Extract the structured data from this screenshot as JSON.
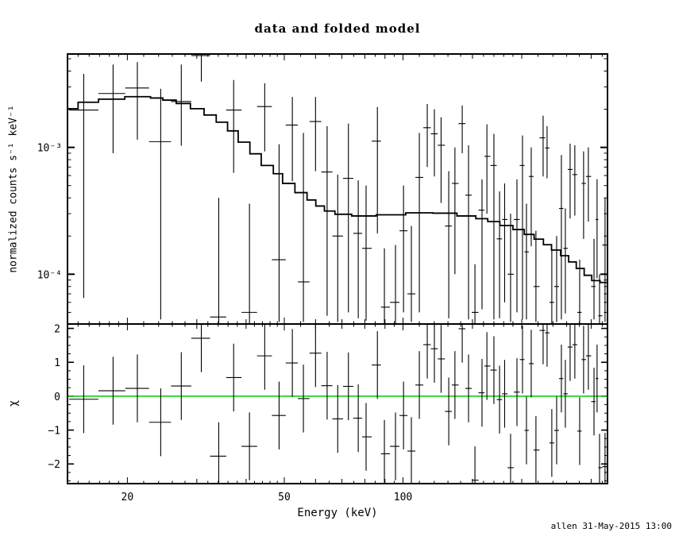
{
  "window": {
    "timestamp": "allen 31-May-2015 13:00"
  },
  "colors": {
    "foreground": "#000000",
    "background": "#ffffff",
    "zero_line": "#00cc00"
  },
  "axes": {
    "x": {
      "scale": "log",
      "min": 14.1,
      "max": 330,
      "unit": "keV",
      "major_ticks": [
        20,
        50,
        100
      ],
      "tick_labels": [
        "20",
        "50",
        "100"
      ],
      "mid_ticks": [
        30,
        40,
        60,
        70,
        80,
        90,
        150,
        200,
        300
      ],
      "minor_ticks": [
        15,
        16,
        17,
        18,
        19,
        22,
        24,
        26,
        28,
        32,
        34,
        36,
        38,
        42,
        44,
        46,
        48,
        55,
        65,
        75,
        85,
        95,
        110,
        120,
        130,
        140,
        160,
        170,
        180,
        190,
        220,
        240,
        260,
        280,
        320
      ]
    },
    "y_top": {
      "scale": "log",
      "min": 4.05e-05,
      "max": 0.00545,
      "major_ticks": [
        0.001,
        0.0001
      ],
      "tick_labels": [
        "10⁻³",
        "10⁻⁴"
      ],
      "minor_ticks": [
        0.005,
        0.004,
        0.003,
        0.002,
        0.0009,
        0.0008,
        0.0007,
        0.0006,
        0.0005,
        0.0004,
        0.0003,
        0.0002,
        9e-05,
        8e-05,
        7e-05,
        6e-05,
        5e-05
      ]
    },
    "y_bottom": {
      "scale": "linear",
      "min": -2.58,
      "max": 2.13,
      "major_ticks": [
        -2,
        -1,
        0,
        1,
        2
      ],
      "tick_labels": [
        "−2",
        "−1",
        "0",
        "1",
        "2"
      ],
      "minor_step": 0.25
    }
  },
  "chart_data": [
    {
      "type": "scatter",
      "panel": "top",
      "title": "data and folded model",
      "xlabel": "Energy (keV)",
      "ylabel": "normalized counts s⁻¹ keV⁻¹",
      "xscale": "log",
      "yscale": "log",
      "xlim": [
        14.1,
        330
      ],
      "ylim": [
        4.05e-05,
        0.00545
      ],
      "grid": false,
      "legend": null,
      "series_note": "points = [energy_keV, rate, err_low, err_high]; horizontal bar spans the energy bin; model is the folded model histogram [e_low, e_high, rate]",
      "points": [
        [
          15.5,
          0.00197,
          6.5e-05,
          0.0038
        ],
        [
          18.4,
          0.00266,
          0.0009,
          0.0045
        ],
        [
          21.2,
          0.00294,
          0.00115,
          0.0047
        ],
        [
          24.3,
          0.00111,
          4.4e-05,
          0.0029
        ],
        [
          27.4,
          0.0023,
          0.00103,
          0.0045
        ],
        [
          30.8,
          0.0053,
          0.0033,
          0.0056
        ],
        [
          34.1,
          4.6e-05,
          4e-05,
          0.0004
        ],
        [
          37.2,
          0.00197,
          0.00063,
          0.0034
        ],
        [
          40.8,
          5e-05,
          4e-05,
          0.00036
        ],
        [
          44.6,
          0.0021,
          0.00093,
          0.0032
        ],
        [
          48.5,
          0.00013,
          4.2e-05,
          0.00106
        ],
        [
          52.4,
          0.0015,
          0.00054,
          0.0025
        ],
        [
          55.9,
          8.7e-05,
          4.2e-05,
          0.0013
        ],
        [
          60.0,
          0.0016,
          0.00065,
          0.0025
        ],
        [
          64.2,
          0.00064,
          4.7e-05,
          0.00147
        ],
        [
          68.3,
          0.0002,
          4.2e-05,
          0.00061
        ],
        [
          72.7,
          0.00057,
          5e-05,
          0.00154
        ],
        [
          77.0,
          0.00021,
          4.5e-05,
          0.00055
        ],
        [
          80.6,
          0.00016,
          4.3e-05,
          0.0005
        ],
        [
          86.1,
          0.00112,
          0.00021,
          0.00208
        ],
        [
          89.7,
          5.5e-05,
          4.1e-05,
          0.00016
        ],
        [
          95.7,
          6e-05,
          4.1e-05,
          0.00017
        ],
        [
          100.3,
          0.00022,
          5e-05,
          0.0005
        ],
        [
          105.0,
          7e-05,
          4.2e-05,
          0.00024
        ],
        [
          110.0,
          0.00058,
          5e-05,
          0.0013
        ],
        [
          115.2,
          0.00143,
          0.0007,
          0.0022
        ],
        [
          120.1,
          0.00128,
          0.00059,
          0.002
        ],
        [
          124.9,
          0.00104,
          0.000365,
          0.00173
        ],
        [
          130.6,
          0.00024,
          4.5e-05,
          0.00065
        ],
        [
          135.4,
          0.00052,
          0.0001,
          0.001
        ],
        [
          141.3,
          0.00154,
          0.0009,
          0.00214
        ],
        [
          146.6,
          0.00042,
          4.4e-05,
          0.00104
        ],
        [
          152.2,
          5e-05,
          4.1e-05,
          0.00012
        ],
        [
          158.6,
          0.00032,
          5.3e-05,
          0.00056
        ],
        [
          163.2,
          0.00085,
          0.0003,
          0.00152
        ],
        [
          170.0,
          0.00072,
          4.4e-05,
          0.00128
        ],
        [
          175.7,
          0.00019,
          4.5e-05,
          0.00045
        ],
        [
          181.0,
          0.00027,
          6e-05,
          0.00052
        ],
        [
          187.4,
          0.0001,
          4.2e-05,
          0.0003
        ],
        [
          194.5,
          0.00027,
          5e-05,
          0.00056
        ],
        [
          200.9,
          0.00072,
          4.4e-05,
          0.00124
        ],
        [
          205.6,
          0.00015,
          4.4e-05,
          0.00036
        ],
        [
          211.4,
          0.00059,
          0.000166,
          0.001
        ],
        [
          217.3,
          8e-05,
          4.2e-05,
          0.00022
        ],
        [
          226.6,
          0.00119,
          0.00059,
          0.00178
        ],
        [
          231.9,
          0.00099,
          0.00057,
          0.00147
        ],
        [
          238.4,
          6e-05,
          4.1e-05,
          0.00016
        ],
        [
          245.2,
          8e-05,
          4.2e-05,
          0.0002
        ],
        [
          252.1,
          0.00033,
          4.4e-05,
          0.00087
        ],
        [
          258.0,
          0.00016,
          4.9e-05,
          0.00033
        ],
        [
          265.3,
          0.00067,
          0.000275,
          0.00107
        ],
        [
          272.7,
          0.00061,
          0.00029,
          0.00104
        ],
        [
          280.5,
          5e-05,
          4.1e-05,
          0.00013
        ],
        [
          287.0,
          0.00052,
          0.00019,
          0.00093
        ],
        [
          295.1,
          0.00059,
          0.00026,
          0.001
        ],
        [
          305.0,
          8e-05,
          4.4e-05,
          0.00019
        ],
        [
          310.5,
          0.00027,
          9.3e-05,
          0.00056
        ],
        [
          315.0,
          4.7e-05,
          4.1e-05,
          0.0001
        ],
        [
          325.3,
          0.00017,
          4.2e-05,
          0.0004
        ]
      ],
      "model": [
        [
          14.1,
          15.0,
          0.00202
        ],
        [
          15.0,
          16.9,
          0.00227
        ],
        [
          16.9,
          19.7,
          0.0024
        ],
        [
          19.7,
          22.9,
          0.00251
        ],
        [
          22.9,
          24.6,
          0.00245
        ],
        [
          24.6,
          26.6,
          0.00236
        ],
        [
          26.6,
          28.9,
          0.00222
        ],
        [
          28.9,
          31.3,
          0.00202
        ],
        [
          31.3,
          33.6,
          0.0018
        ],
        [
          33.6,
          35.9,
          0.00158
        ],
        [
          35.9,
          38.2,
          0.00135
        ],
        [
          38.2,
          40.9,
          0.0011
        ],
        [
          40.9,
          43.7,
          0.00089
        ],
        [
          43.7,
          46.9,
          0.00072
        ],
        [
          46.9,
          49.5,
          0.00062
        ],
        [
          49.5,
          53.2,
          0.00052
        ],
        [
          53.2,
          57.1,
          0.00044
        ],
        [
          57.1,
          60.1,
          0.000385
        ],
        [
          60.1,
          63.2,
          0.000345
        ],
        [
          63.2,
          67.2,
          0.000315
        ],
        [
          67.2,
          74.1,
          0.000297
        ],
        [
          74.1,
          85.5,
          0.000288
        ],
        [
          85.5,
          101.6,
          0.000294
        ],
        [
          101.6,
          119.0,
          0.000305
        ],
        [
          119.0,
          137.0,
          0.000303
        ],
        [
          137.0,
          153.0,
          0.000288
        ],
        [
          153.0,
          164.0,
          0.000274
        ],
        [
          164.0,
          176.0,
          0.00026
        ],
        [
          176.0,
          190.0,
          0.000242
        ],
        [
          190.0,
          203.0,
          0.000225
        ],
        [
          203.0,
          215.0,
          0.000206
        ],
        [
          215.0,
          227.0,
          0.000189
        ],
        [
          227.0,
          238.0,
          0.000171
        ],
        [
          238.0,
          251.0,
          0.000155
        ],
        [
          251.0,
          263.0,
          0.00014
        ],
        [
          263.0,
          275.0,
          0.000125
        ],
        [
          275.0,
          288.0,
          0.000111
        ],
        [
          288.0,
          301.0,
          9.8e-05
        ],
        [
          301.0,
          316.0,
          8.9e-05
        ],
        [
          316.0,
          330.0,
          8.6e-05
        ]
      ]
    },
    {
      "type": "scatter",
      "panel": "bottom",
      "ylabel": "χ",
      "xlabel": "Energy (keV)",
      "xscale": "log",
      "yscale": "linear",
      "xlim": [
        14.1,
        330
      ],
      "ylim": [
        -2.58,
        2.13
      ],
      "grid": false,
      "chi_error": 1.0,
      "zero_line": 0,
      "series_note": "points = [energy_keV, chi]; error bars are ±1.0 clipped to panel",
      "points": [
        [
          15.5,
          -0.09
        ],
        [
          18.4,
          0.16
        ],
        [
          21.2,
          0.23
        ],
        [
          24.3,
          -0.77
        ],
        [
          27.4,
          0.3
        ],
        [
          30.8,
          1.71
        ],
        [
          34.1,
          -1.77
        ],
        [
          37.2,
          0.55
        ],
        [
          40.8,
          -1.48
        ],
        [
          44.6,
          1.19
        ],
        [
          48.5,
          -0.57
        ],
        [
          52.4,
          0.98
        ],
        [
          55.9,
          -0.07
        ],
        [
          60.0,
          1.27
        ],
        [
          64.2,
          0.31
        ],
        [
          68.3,
          -0.67
        ],
        [
          72.7,
          0.29
        ],
        [
          77.0,
          -0.65
        ],
        [
          80.6,
          -1.2
        ],
        [
          86.1,
          0.92
        ],
        [
          89.7,
          -1.7
        ],
        [
          95.7,
          -1.48
        ],
        [
          100.3,
          -0.57
        ],
        [
          105.0,
          -1.62
        ],
        [
          110.0,
          0.33
        ],
        [
          115.2,
          1.52
        ],
        [
          120.1,
          1.4
        ],
        [
          124.9,
          1.1
        ],
        [
          130.6,
          -0.45
        ],
        [
          135.4,
          0.33
        ],
        [
          141.3,
          1.99
        ],
        [
          146.6,
          0.23
        ],
        [
          152.2,
          -2.48
        ],
        [
          158.6,
          0.1
        ],
        [
          163.2,
          0.89
        ],
        [
          170.0,
          0.77
        ],
        [
          175.7,
          -0.1
        ],
        [
          181.0,
          0.07
        ],
        [
          187.4,
          -2.11
        ],
        [
          194.5,
          0.12
        ],
        [
          200.9,
          1.08
        ],
        [
          205.6,
          -1.01
        ],
        [
          211.4,
          0.96
        ],
        [
          217.3,
          -1.59
        ],
        [
          226.6,
          1.94
        ],
        [
          231.9,
          1.87
        ],
        [
          238.4,
          -1.38
        ],
        [
          245.2,
          -1.01
        ],
        [
          252.1,
          0.52
        ],
        [
          258.0,
          0.07
        ],
        [
          265.3,
          1.45
        ],
        [
          272.7,
          1.52
        ],
        [
          280.5,
          -1.03
        ],
        [
          287.0,
          1.08
        ],
        [
          295.1,
          1.19
        ],
        [
          305.0,
          -0.16
        ],
        [
          310.5,
          0.52
        ],
        [
          315.0,
          -2.11
        ],
        [
          325.3,
          -2.08
        ]
      ]
    }
  ]
}
